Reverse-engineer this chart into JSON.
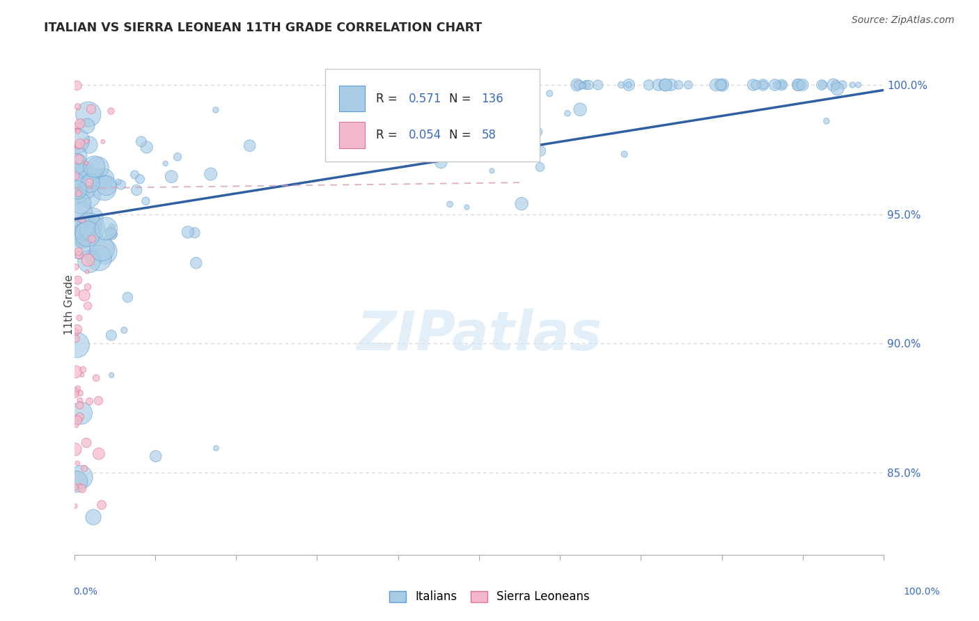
{
  "title": "ITALIAN VS SIERRA LEONEAN 11TH GRADE CORRELATION CHART",
  "source": "Source: ZipAtlas.com",
  "ylabel": "11th Grade",
  "legend_label_blue": "Italians",
  "legend_label_pink": "Sierra Leoneans",
  "blue_color": "#a8cce4",
  "blue_edge_color": "#5b9bd5",
  "pink_color": "#f4b8cb",
  "pink_edge_color": "#e07090",
  "blue_line_color": "#2e5fa3",
  "pink_line_color": "#c8a0b0",
  "blue_R": 0.571,
  "blue_N": 136,
  "pink_R": 0.054,
  "pink_N": 58,
  "x_min": 0.0,
  "x_max": 1.0,
  "y_min": 0.818,
  "y_max": 1.012,
  "y_ticks": [
    0.85,
    0.9,
    0.95,
    1.0
  ],
  "y_tick_labels": [
    "85.0%",
    "90.0%",
    "95.0%",
    "100.0%"
  ],
  "legend_color": "#3a6bbf",
  "tick_label_color": "#3a6bbf",
  "grid_color": "#d4d4d4",
  "title_color": "#2a2a2a",
  "source_color": "#555555",
  "watermark_text": "ZIPatlas",
  "watermark_color": "#d0e4f4"
}
